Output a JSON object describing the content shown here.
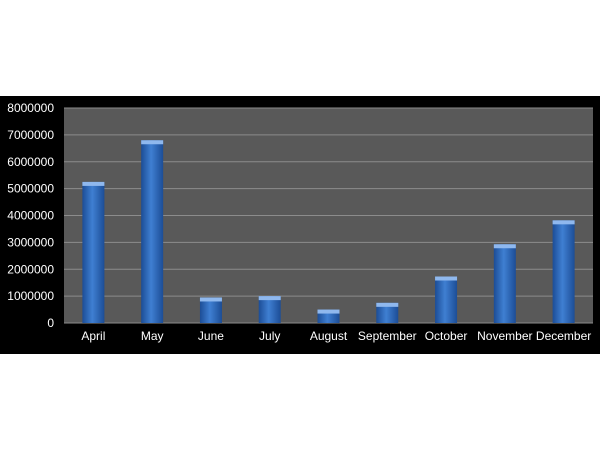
{
  "chart_data": {
    "type": "bar",
    "categories": [
      "April",
      "May",
      "June",
      "July",
      "August",
      "September",
      "October",
      "November",
      "December"
    ],
    "values": [
      5250000,
      6800000,
      950000,
      1000000,
      500000,
      750000,
      1730000,
      2930000,
      3820000
    ],
    "title": "",
    "xlabel": "",
    "ylabel": "",
    "ylim": [
      0,
      8000000
    ],
    "yticks": [
      "0",
      "1000000",
      "2000000",
      "3000000",
      "4000000",
      "5000000",
      "6000000",
      "7000000",
      "8000000"
    ],
    "grid": true,
    "legend": "none",
    "colors": {
      "background": "#000000",
      "plot_area": "#595959",
      "gridline": "#8c8c8c",
      "bar": "#3f7fd2",
      "bar_highlight": "#8fb8ee",
      "bar_shadow": "#1c4d96",
      "text": "#ffffff"
    }
  }
}
